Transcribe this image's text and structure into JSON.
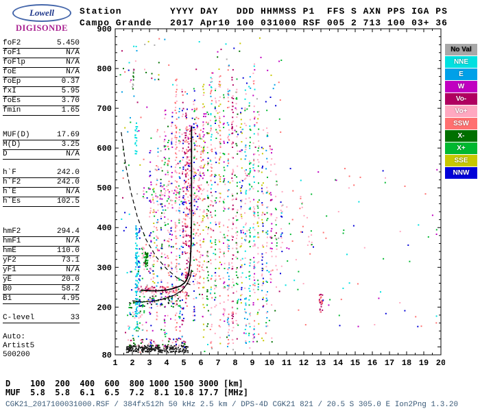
{
  "logo": {
    "name": "Lowell",
    "product": "DIGISONDE"
  },
  "header": {
    "line1": "Station        YYYY DAY   DDD HHMMSS P1  FFS S AXN PPS IGA PS",
    "line2": "Campo Grande   2017 Apr10 100 031000 RSF 005 2 713 100 03+ 36"
  },
  "params": {
    "groups": [
      {
        "rows": [
          [
            "foF2",
            "5.450"
          ],
          [
            "foF1",
            "N/A"
          ],
          [
            "foFlp",
            "N/A"
          ],
          [
            "foE",
            "N/A"
          ],
          [
            "foEp",
            "0.37"
          ],
          [
            "fxI",
            "5.95"
          ],
          [
            "foEs",
            "3.70"
          ],
          [
            "fmin",
            "1.65"
          ]
        ]
      },
      {
        "rows": [
          [
            "MUF(D)",
            "17.69"
          ],
          [
            "M(D)",
            "3.25"
          ],
          [
            "D",
            "N/A"
          ]
        ]
      },
      {
        "rows": [
          [
            "h`F",
            "242.0"
          ],
          [
            "h`F2",
            "242.0"
          ],
          [
            "h`E",
            "N/A"
          ],
          [
            "h`Es",
            "102.5"
          ]
        ]
      },
      {
        "rows": [
          [
            "hmF2",
            "294.4"
          ],
          [
            "hmF1",
            "N/A"
          ],
          [
            "hmE",
            "110.0"
          ],
          [
            "yF2",
            "73.1"
          ],
          [
            "yF1",
            "N/A"
          ],
          [
            "yE",
            "20.0"
          ],
          [
            "B0",
            "58.2"
          ],
          [
            "B1",
            "4.95"
          ]
        ]
      },
      {
        "rows": [
          [
            "C-level",
            "33"
          ]
        ]
      }
    ],
    "footer_lines": [
      "Auto:",
      "Artist5",
      "500200"
    ]
  },
  "legend": {
    "items": [
      {
        "label": "No Val",
        "color": "#a8a8a8",
        "text": "#000000"
      },
      {
        "label": "NNE",
        "color": "#00e0e0",
        "text": "#ffffff"
      },
      {
        "label": "E",
        "color": "#00a0e8",
        "text": "#ffffff"
      },
      {
        "label": "W",
        "color": "#c000c0",
        "text": "#ffffff"
      },
      {
        "label": "Vo-",
        "color": "#b00060",
        "text": "#ffffff"
      },
      {
        "label": "Vo+",
        "color": "#ffa8c0",
        "text": "#ffffff"
      },
      {
        "label": "SSW",
        "color": "#ff7070",
        "text": "#ffffff"
      },
      {
        "label": "X-",
        "color": "#007000",
        "text": "#ffffff"
      },
      {
        "label": "X+",
        "color": "#00b830",
        "text": "#ffffff"
      },
      {
        "label": "SSE",
        "color": "#c8c800",
        "text": "#ffffff"
      },
      {
        "label": "NNW",
        "color": "#0000d8",
        "text": "#ffffff"
      }
    ]
  },
  "chart_data": {
    "type": "scatter",
    "title": "Campo Grande Digisonde ionogram, 2017 Apr10 (day 100) 031000 UT",
    "xlabel": "[MHz]",
    "ylabel": "[km]",
    "xlim": [
      1,
      20
    ],
    "ylim": [
      80,
      900
    ],
    "x_ticks": [
      1,
      2,
      3,
      4,
      5,
      6,
      7,
      8,
      9,
      10,
      11,
      12,
      13,
      14,
      15,
      16,
      17,
      18,
      19,
      20
    ],
    "y_tick_labels": [
      900,
      800,
      700,
      600,
      500,
      400,
      300,
      200,
      80
    ],
    "x_minor_step": 0.5,
    "y_minor_step": 20,
    "key_values": {
      "foF2_MHz": 5.45,
      "fxI_MHz": 5.95,
      "foEs_MHz": 3.7,
      "fmin_MHz": 1.65,
      "hF_km": 242.0,
      "hmF2_km": 294.4,
      "hEs_km": 102.5,
      "hmE_km": 110.0,
      "MUF_D_MHz": 17.69,
      "M_D": 3.25,
      "B0": 58.2,
      "B1": 4.95,
      "confidence_level": 33
    },
    "colors": {
      "black": "#1a1a1a",
      "noval": "#a8a8a8",
      "nne": "#00e0e0",
      "e": "#00a0e8",
      "w": "#c000c0",
      "vo_minus": "#b00060",
      "vo_plus": "#ffa8c0",
      "ssw": "#ff7070",
      "x_minus": "#007000",
      "x_plus": "#00b830",
      "sse": "#c8c800",
      "nnw": "#0000d8"
    },
    "curves": {
      "muf_transmission_dashed": [
        [
          1.35,
          640
        ],
        [
          1.6,
          560
        ],
        [
          1.9,
          492
        ],
        [
          2.3,
          426
        ],
        [
          2.8,
          370
        ],
        [
          3.4,
          326
        ],
        [
          4.0,
          296
        ],
        [
          4.6,
          274
        ],
        [
          5.1,
          262
        ],
        [
          5.5,
          254
        ]
      ],
      "profile": [
        [
          2.0,
          216
        ],
        [
          2.6,
          213
        ],
        [
          3.2,
          215
        ],
        [
          3.8,
          220
        ],
        [
          4.4,
          229
        ],
        [
          4.9,
          242
        ],
        [
          5.2,
          259
        ],
        [
          5.38,
          276
        ],
        [
          5.45,
          294
        ]
      ],
      "f_trace_fit": [
        [
          2.5,
          243
        ],
        [
          3.0,
          241
        ],
        [
          3.5,
          241
        ],
        [
          4.0,
          243
        ],
        [
          4.4,
          247
        ],
        [
          4.8,
          253
        ],
        [
          5.05,
          261
        ],
        [
          5.2,
          272
        ],
        [
          5.3,
          288
        ],
        [
          5.38,
          315
        ],
        [
          5.43,
          360
        ],
        [
          5.45,
          430
        ],
        [
          5.45,
          655
        ]
      ]
    },
    "clusters": [
      [
        1.65,
        5.25,
        86,
        104,
        220,
        [
          "black"
        ]
      ],
      [
        1.65,
        5.25,
        102,
        122,
        60,
        [
          "vo_minus",
          "nnw",
          "x_minus",
          "vo_plus"
        ]
      ],
      [
        1.8,
        4.8,
        198,
        228,
        70,
        [
          "x_minus",
          "nnw",
          "black",
          "x_plus"
        ]
      ],
      [
        1.7,
        2.6,
        140,
        190,
        30,
        [
          "vo_plus",
          "nne",
          "x_plus"
        ]
      ],
      [
        2.3,
        5.05,
        236,
        252,
        90,
        [
          "vo_plus",
          "vo_minus",
          "ssw"
        ]
      ],
      [
        5.05,
        5.5,
        255,
        650,
        120,
        [
          "vo_minus",
          "ssw",
          "vo_plus"
        ]
      ],
      [
        5.55,
        6.1,
        245,
        700,
        110,
        [
          "vo_plus",
          "ssw"
        ]
      ],
      [
        2.6,
        5.0,
        465,
        505,
        45,
        [
          "vo_plus",
          "x_plus",
          "w"
        ]
      ],
      [
        4.9,
        6.3,
        430,
        700,
        60,
        [
          "vo_plus",
          "w",
          "nnw"
        ]
      ],
      [
        2.18,
        2.3,
        145,
        410,
        85,
        [
          "nne",
          "e"
        ]
      ],
      [
        2.15,
        2.3,
        580,
        665,
        22,
        [
          "nne"
        ]
      ],
      [
        2.35,
        2.45,
        200,
        400,
        28,
        [
          "nnw",
          "nne"
        ]
      ],
      [
        2.0,
        2.1,
        740,
        800,
        10,
        [
          "x_minus",
          "noval"
        ]
      ],
      [
        2.55,
        2.7,
        180,
        350,
        28,
        [
          "x_plus",
          "vo_plus"
        ]
      ],
      [
        2.75,
        2.9,
        295,
        340,
        40,
        [
          "x_minus",
          "x_plus"
        ]
      ],
      [
        3.0,
        3.1,
        150,
        600,
        40,
        [
          "vo_plus",
          "w",
          "nnw"
        ]
      ],
      [
        3.2,
        3.3,
        200,
        520,
        35,
        [
          "x_plus",
          "sse",
          "vo_plus"
        ]
      ],
      [
        3.4,
        3.5,
        100,
        650,
        42,
        [
          "vo_plus",
          "ssw",
          "e"
        ]
      ],
      [
        3.65,
        3.75,
        200,
        560,
        40,
        [
          "x_minus",
          "nnw",
          "vo_plus"
        ]
      ],
      [
        3.85,
        3.95,
        90,
        700,
        48,
        [
          "x_plus",
          "vo_plus",
          "w"
        ]
      ],
      [
        4.05,
        4.15,
        150,
        620,
        45,
        [
          "vo_plus",
          "ssw",
          "x_plus"
        ]
      ],
      [
        4.25,
        4.35,
        200,
        700,
        48,
        [
          "w",
          "vo_plus",
          "nnw"
        ]
      ],
      [
        4.5,
        4.6,
        90,
        780,
        90,
        [
          "vo_plus",
          "ssw"
        ]
      ],
      [
        4.7,
        4.8,
        150,
        700,
        50,
        [
          "x_plus",
          "vo_plus",
          "e"
        ]
      ],
      [
        4.9,
        5.0,
        100,
        750,
        55,
        [
          "vo_minus",
          "vo_plus",
          "nnw"
        ]
      ],
      [
        5.1,
        5.2,
        200,
        700,
        60,
        [
          "vo_minus",
          "ssw"
        ]
      ],
      [
        5.55,
        5.65,
        150,
        750,
        55,
        [
          "vo_plus",
          "x_plus",
          "nnw"
        ]
      ],
      [
        6.1,
        6.2,
        100,
        780,
        65,
        [
          "vo_plus",
          "w",
          "sse"
        ]
      ],
      [
        6.35,
        6.45,
        150,
        700,
        55,
        [
          "x_plus",
          "x_minus",
          "vo_plus"
        ]
      ],
      [
        6.55,
        6.65,
        90,
        800,
        75,
        [
          "vo_plus",
          "ssw",
          "nne"
        ]
      ],
      [
        6.8,
        6.9,
        200,
        750,
        55,
        [
          "vo_plus",
          "nnw",
          "x_plus"
        ]
      ],
      [
        7.05,
        7.15,
        100,
        800,
        65,
        [
          "sse",
          "vo_plus",
          "ssw"
        ]
      ],
      [
        7.3,
        7.4,
        150,
        750,
        55,
        [
          "vo_plus",
          "w",
          "x_plus"
        ]
      ],
      [
        7.55,
        7.65,
        90,
        820,
        75,
        [
          "vo_plus",
          "ssw",
          "e"
        ]
      ],
      [
        7.8,
        7.9,
        100,
        800,
        85,
        [
          "vo_plus",
          "vo_minus"
        ]
      ],
      [
        8.05,
        8.15,
        150,
        750,
        55,
        [
          "x_plus",
          "x_minus",
          "vo_plus"
        ]
      ],
      [
        8.3,
        8.4,
        200,
        700,
        48,
        [
          "vo_plus",
          "nnw",
          "sse"
        ]
      ],
      [
        8.55,
        8.65,
        100,
        750,
        55,
        [
          "nne",
          "e",
          "vo_plus"
        ]
      ],
      [
        8.8,
        8.9,
        90,
        800,
        65,
        [
          "nne",
          "vo_plus",
          "x_plus"
        ]
      ],
      [
        9.05,
        9.15,
        100,
        820,
        75,
        [
          "vo_plus",
          "ssw",
          "w",
          "nne"
        ]
      ],
      [
        9.3,
        9.4,
        150,
        700,
        48,
        [
          "x_plus",
          "sse",
          "vo_plus"
        ]
      ],
      [
        9.55,
        9.65,
        200,
        650,
        42,
        [
          "vo_plus",
          "sse",
          "nnw"
        ]
      ],
      [
        9.8,
        9.9,
        150,
        700,
        42,
        [
          "vo_plus",
          "e",
          "x_plus"
        ]
      ],
      [
        10.05,
        10.15,
        200,
        600,
        32,
        [
          "vo_plus",
          "w"
        ]
      ],
      [
        10.35,
        10.45,
        250,
        550,
        22,
        [
          "x_plus",
          "vo_plus"
        ]
      ],
      [
        10.65,
        10.75,
        300,
        500,
        16,
        [
          "vo_plus",
          "nnw"
        ]
      ],
      [
        12.9,
        13.1,
        185,
        235,
        26,
        [
          "ssw",
          "vo_minus"
        ]
      ],
      [
        1.3,
        10.8,
        85,
        880,
        300,
        [
          "vo_plus",
          "x_plus",
          "nne",
          "ssw",
          "w",
          "nnw",
          "sse",
          "e",
          "x_minus",
          "vo_minus",
          "noval"
        ]
      ],
      [
        10.8,
        19.8,
        150,
        550,
        75,
        [
          "vo_plus",
          "x_plus",
          "ssw",
          "nne",
          "nnw",
          "w"
        ]
      ],
      [
        11.0,
        12.5,
        330,
        480,
        20,
        [
          "x_plus",
          "vo_plus",
          "ssw"
        ]
      ]
    ]
  },
  "footer": {
    "d_line": "D    100  200  400  600  800 1000 1500 3000 [km]",
    "muf_line": "MUF  5.8  5.8  6.1  6.5  7.2  8.1 10.8 17.7 [MHz]",
    "info_line": "CGK21_2017100031000.RSF / 384fx512h 50 kHz 2.5 km / DPS-4D CGK21 821 / 20.5 S 305.0 E Ion2Png 1.3.20"
  }
}
